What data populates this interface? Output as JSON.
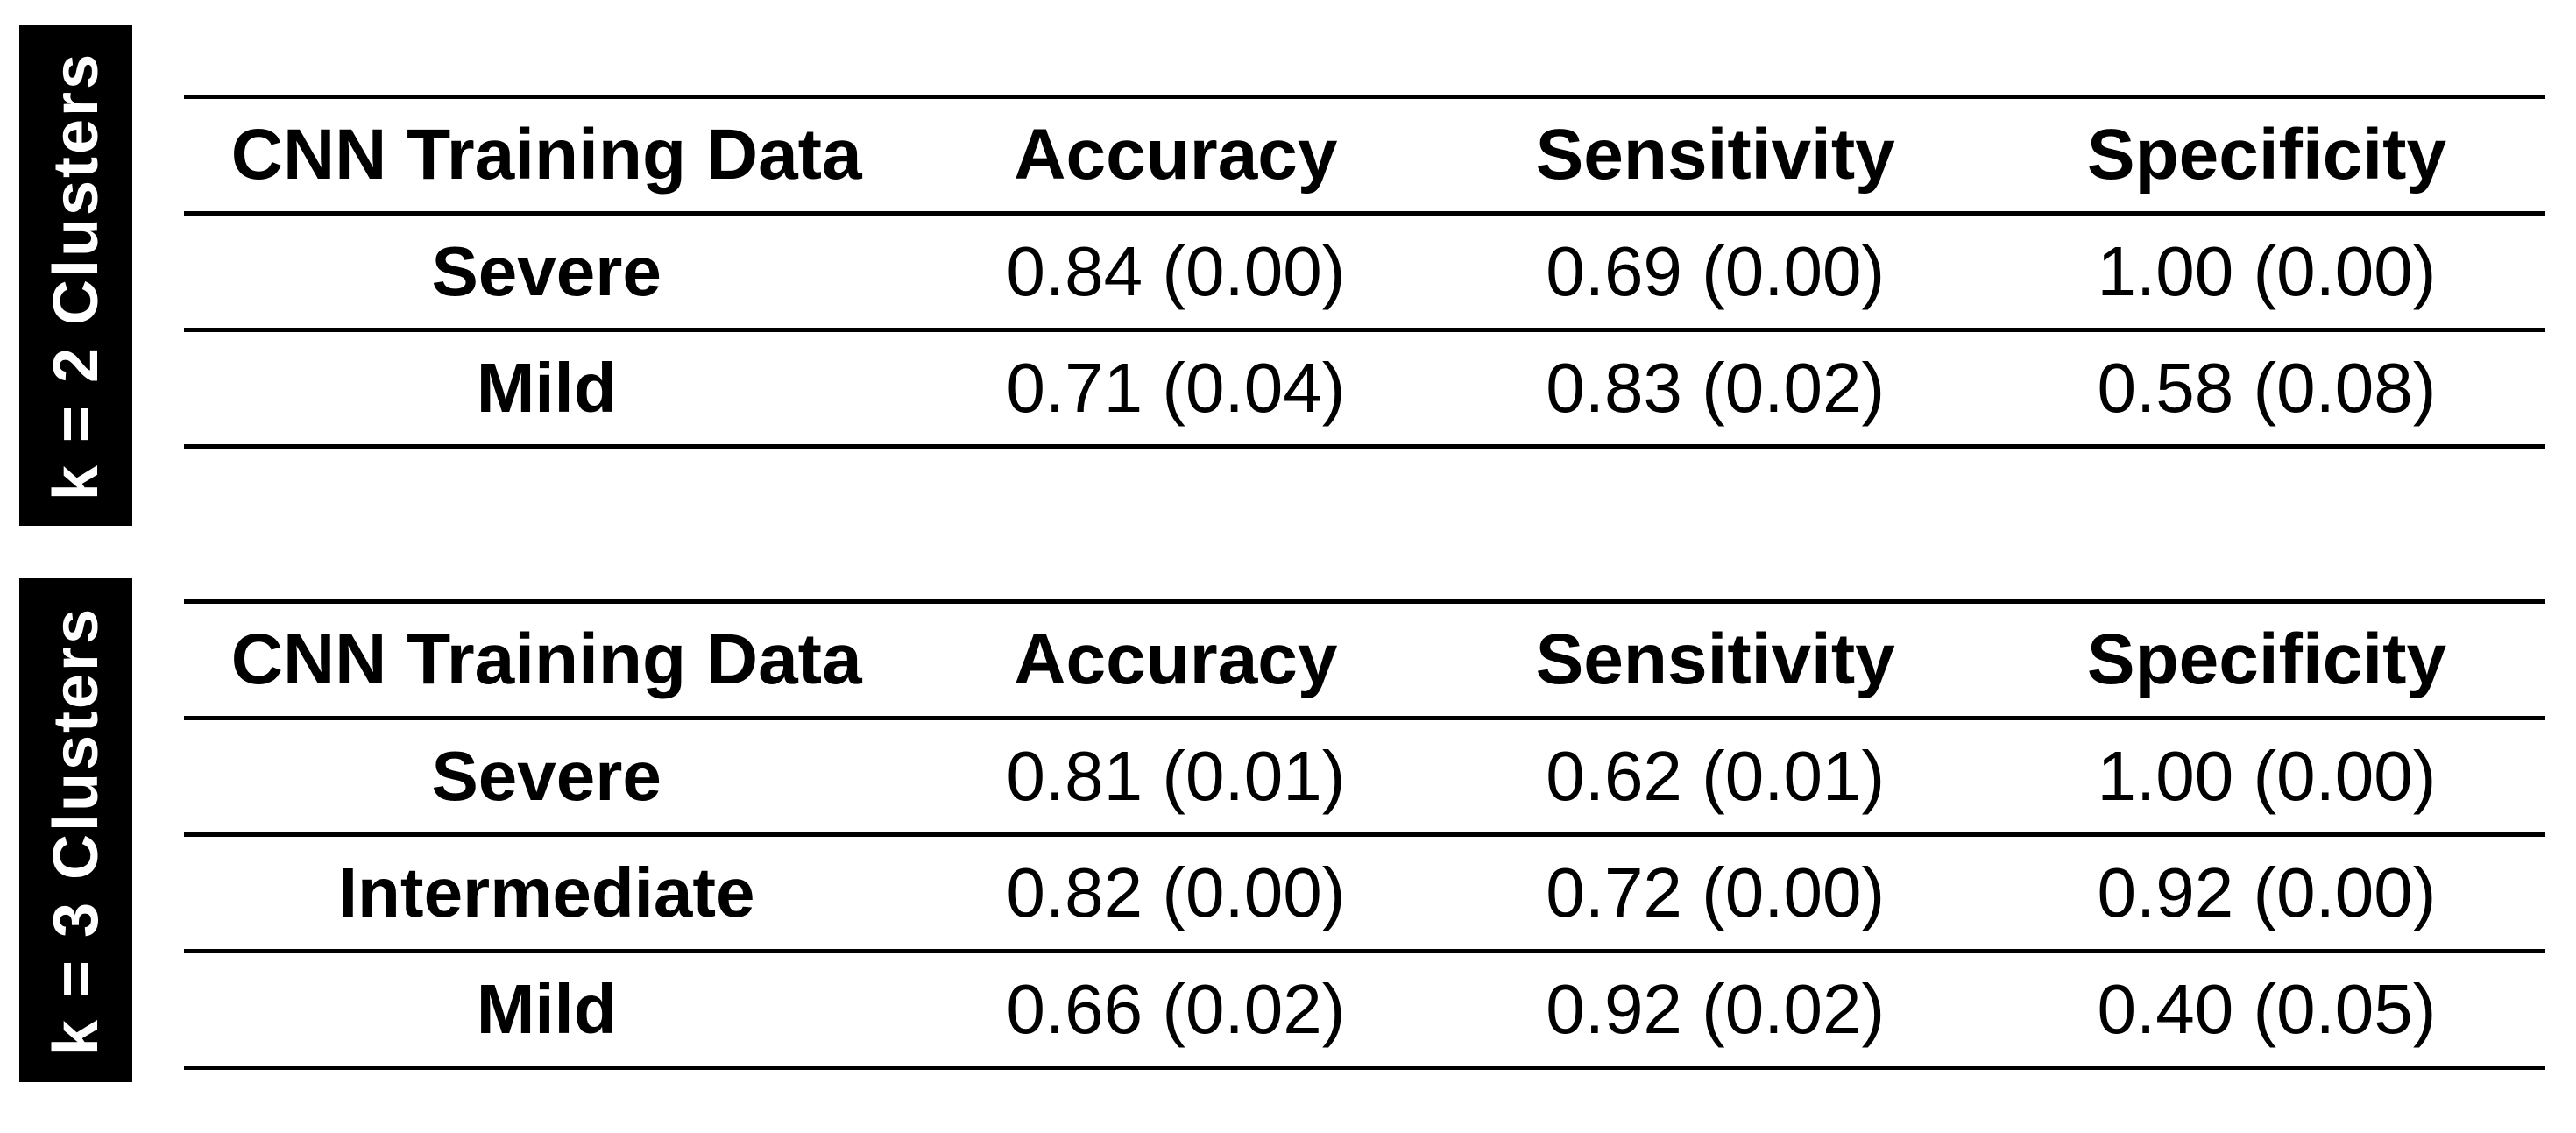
{
  "page": {
    "background_color": "#ffffff",
    "text_color": "#000000",
    "label_bg_color": "#000000",
    "label_text_color": "#ffffff"
  },
  "tables": [
    {
      "group_label": "k = 2 Clusters",
      "columns": [
        "CNN Training Data",
        "Accuracy",
        "Sensitivity",
        "Specificity"
      ],
      "rows": [
        {
          "label": "Severe",
          "values": [
            "0.84 (0.00)",
            "0.69 (0.00)",
            "1.00 (0.00)"
          ]
        },
        {
          "label": "Mild",
          "values": [
            "0.71 (0.04)",
            "0.83 (0.02)",
            "0.58 (0.08)"
          ]
        }
      ]
    },
    {
      "group_label": "k = 3 Clusters",
      "columns": [
        "CNN Training Data",
        "Accuracy",
        "Sensitivity",
        "Specificity"
      ],
      "rows": [
        {
          "label": "Severe",
          "values": [
            "0.81 (0.01)",
            "0.62 (0.01)",
            "1.00 (0.00)"
          ]
        },
        {
          "label": "Intermediate",
          "values": [
            "0.82 (0.00)",
            "0.72 (0.00)",
            "0.92 (0.00)"
          ]
        },
        {
          "label": "Mild",
          "values": [
            "0.66 (0.02)",
            "0.92 (0.02)",
            "0.40 (0.05)"
          ]
        }
      ]
    }
  ]
}
